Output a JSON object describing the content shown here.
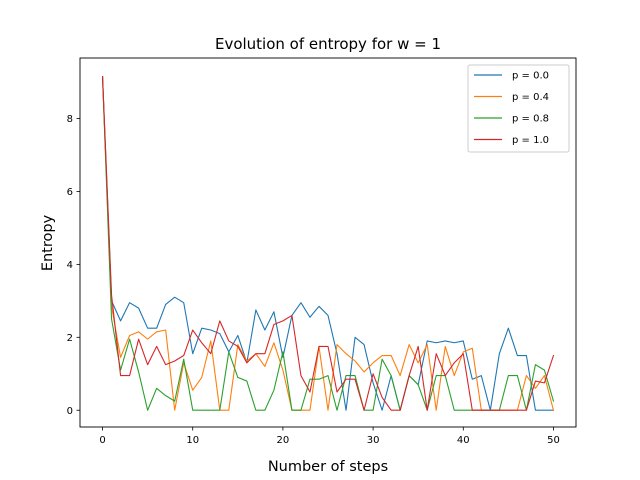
{
  "chart_data": {
    "type": "line",
    "title": "Evolution of entropy for w = 1",
    "xlabel": "Number of steps",
    "ylabel": "Entropy",
    "xlim": [
      -2.5,
      52.5
    ],
    "ylim": [
      -0.46,
      9.66
    ],
    "x_ticks": [
      0,
      10,
      20,
      30,
      40,
      50
    ],
    "y_ticks": [
      0,
      2,
      4,
      6,
      8
    ],
    "grid": false,
    "legend_position": "top-right",
    "x": [
      0,
      1,
      2,
      3,
      4,
      5,
      6,
      7,
      8,
      9,
      10,
      11,
      12,
      13,
      14,
      15,
      16,
      17,
      18,
      19,
      20,
      21,
      22,
      23,
      24,
      25,
      26,
      27,
      28,
      29,
      30,
      31,
      32,
      33,
      34,
      35,
      36,
      37,
      38,
      39,
      40,
      41,
      42,
      43,
      44,
      45,
      46,
      47,
      48,
      49,
      50
    ],
    "series": [
      {
        "name": "p = 0.0",
        "color": "#1f77b4",
        "values": [
          9.15,
          3.0,
          2.45,
          2.95,
          2.8,
          2.25,
          2.25,
          2.9,
          3.1,
          2.95,
          1.55,
          2.25,
          2.2,
          2.1,
          1.6,
          2.05,
          1.3,
          2.75,
          2.2,
          2.7,
          1.45,
          2.6,
          2.95,
          2.55,
          2.85,
          2.6,
          1.55,
          0.0,
          2.0,
          1.8,
          0.75,
          0.0,
          0.95,
          0.0,
          0.95,
          0.7,
          1.9,
          1.85,
          1.9,
          1.85,
          1.9,
          0.85,
          0.95,
          0.0,
          1.55,
          2.25,
          1.5,
          1.5,
          0.0,
          0.0,
          0.0
        ]
      },
      {
        "name": "p = 0.4",
        "color": "#ff7f0e",
        "values": [
          9.15,
          2.85,
          1.45,
          2.05,
          2.15,
          1.95,
          2.15,
          2.2,
          0.0,
          1.3,
          0.55,
          0.9,
          1.9,
          0.0,
          0.0,
          1.8,
          1.35,
          1.55,
          1.2,
          1.85,
          1.1,
          0.0,
          0.0,
          0.0,
          1.75,
          0.0,
          1.8,
          1.55,
          1.35,
          1.05,
          1.3,
          1.5,
          1.5,
          0.95,
          1.8,
          1.3,
          1.8,
          0.0,
          1.75,
          0.95,
          1.6,
          1.7,
          0.0,
          0.0,
          0.0,
          0.0,
          0.0,
          0.95,
          0.6,
          0.95,
          0.0
        ]
      },
      {
        "name": "p = 0.8",
        "color": "#2ca02c",
        "values": [
          9.15,
          2.5,
          1.1,
          1.95,
          1.05,
          0.0,
          0.6,
          0.4,
          0.25,
          1.4,
          0.0,
          0.0,
          0.0,
          0.0,
          1.6,
          0.9,
          0.8,
          0.0,
          0.0,
          0.55,
          1.6,
          0.0,
          0.0,
          0.85,
          0.85,
          0.95,
          0.0,
          0.95,
          0.95,
          0.0,
          0.0,
          1.4,
          0.95,
          0.0,
          0.95,
          0.7,
          0.0,
          0.95,
          0.95,
          0.0,
          0.0,
          0.0,
          0.0,
          0.0,
          0.0,
          0.95,
          0.95,
          0.0,
          1.25,
          1.1,
          0.25
        ]
      },
      {
        "name": "p = 1.0",
        "color": "#d62728",
        "values": [
          9.15,
          3.15,
          0.95,
          0.95,
          1.95,
          1.25,
          1.75,
          1.25,
          1.35,
          1.5,
          2.2,
          1.85,
          1.55,
          2.45,
          1.9,
          1.75,
          1.3,
          1.55,
          1.55,
          2.35,
          2.45,
          2.6,
          0.95,
          0.5,
          1.75,
          1.75,
          0.5,
          0.85,
          0.85,
          0.0,
          1.0,
          0.35,
          0.0,
          0.0,
          0.95,
          1.75,
          0.0,
          1.55,
          0.95,
          1.3,
          1.55,
          0.0,
          0.0,
          0.0,
          0.0,
          0.0,
          0.0,
          0.0,
          0.8,
          0.75,
          1.5
        ]
      }
    ]
  }
}
